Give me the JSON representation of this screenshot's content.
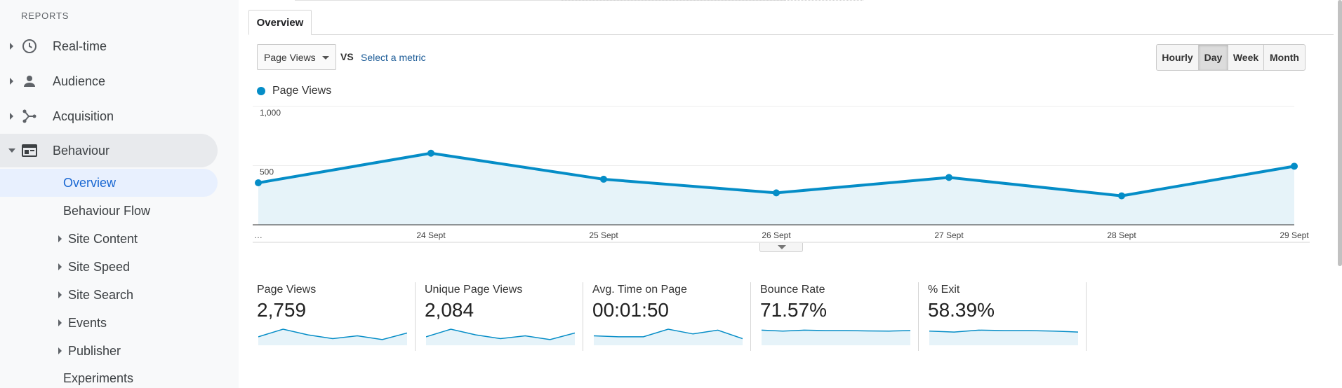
{
  "sidebar": {
    "heading": "REPORTS",
    "items": [
      {
        "label": "Real-time",
        "icon": "clock-icon"
      },
      {
        "label": "Audience",
        "icon": "person-icon"
      },
      {
        "label": "Acquisition",
        "icon": "acquisition-icon"
      },
      {
        "label": "Behaviour",
        "icon": "behaviour-icon",
        "expanded": true
      }
    ],
    "behaviour_sub": [
      {
        "label": "Overview",
        "selected": true,
        "caret": false
      },
      {
        "label": "Behaviour Flow",
        "caret": false
      },
      {
        "label": "Site Content",
        "caret": true
      },
      {
        "label": "Site Speed",
        "caret": true
      },
      {
        "label": "Site Search",
        "caret": true
      },
      {
        "label": "Events",
        "caret": true
      },
      {
        "label": "Publisher",
        "caret": true
      },
      {
        "label": "Experiments",
        "caret": false
      }
    ]
  },
  "main": {
    "tab_label": "Overview",
    "metric_select": "Page Views",
    "vs_label": "VS",
    "select_metric_link": "Select a metric",
    "granularity": [
      "Hourly",
      "Day",
      "Week",
      "Month"
    ],
    "granularity_active": "Day",
    "legend_label": "Page Views"
  },
  "chart_data": {
    "type": "line",
    "x": [
      "…",
      "24 Sept",
      "25 Sept",
      "26 Sept",
      "27 Sept",
      "28 Sept",
      "29 Sept"
    ],
    "series": [
      {
        "name": "Page Views",
        "values": [
          355,
          605,
          385,
          270,
          400,
          245,
          495
        ]
      }
    ],
    "y_ticks": [
      "1,000",
      "500"
    ],
    "ylim": [
      0,
      1000
    ],
    "color": "#058dc7",
    "fill": "#e6f3f9",
    "grid": true
  },
  "stats": [
    {
      "name": "Page Views",
      "value": "2,759",
      "spark": [
        0.45,
        0.85,
        0.55,
        0.35,
        0.5,
        0.3,
        0.65
      ]
    },
    {
      "name": "Unique Page Views",
      "value": "2,084",
      "spark": [
        0.45,
        0.85,
        0.55,
        0.35,
        0.5,
        0.3,
        0.65
      ]
    },
    {
      "name": "Avg. Time on Page",
      "value": "00:01:50",
      "spark": [
        0.5,
        0.45,
        0.45,
        0.85,
        0.6,
        0.8,
        0.35
      ]
    },
    {
      "name": "Bounce Rate",
      "value": "71.57%",
      "spark": [
        0.8,
        0.75,
        0.8,
        0.78,
        0.78,
        0.76,
        0.75,
        0.78
      ]
    },
    {
      "name": "% Exit",
      "value": "58.39%",
      "spark": [
        0.75,
        0.7,
        0.8,
        0.78,
        0.78,
        0.75,
        0.7
      ]
    }
  ]
}
